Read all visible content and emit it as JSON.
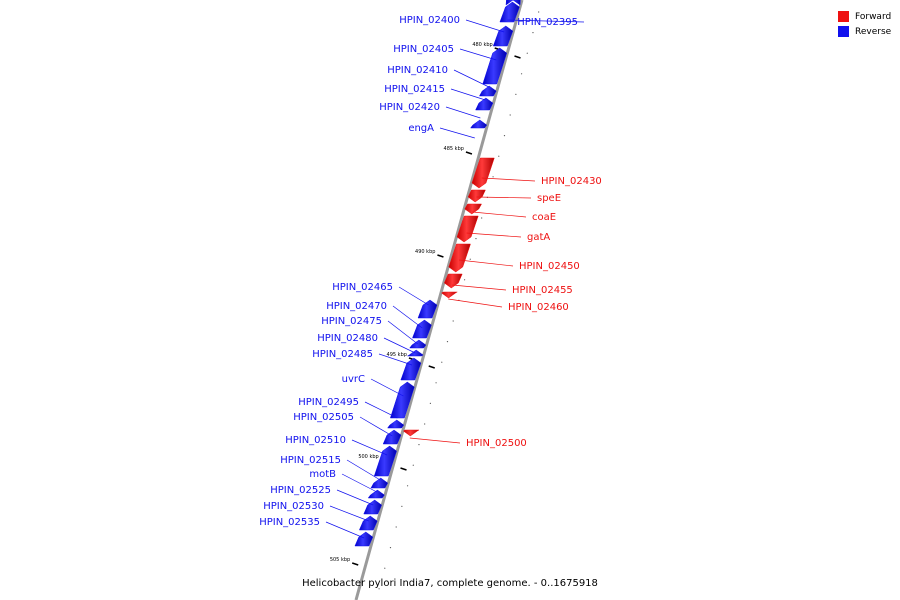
{
  "colors": {
    "forward": "#ee1111",
    "reverse": "#1111ee",
    "backbone": "#999999"
  },
  "legend": {
    "forward_label": "Forward",
    "reverse_label": "Reverse"
  },
  "caption": "Helicobacter pylori India7, complete genome. - 0..1675918",
  "scale_labels": [
    "480 kbp",
    "485 kbp",
    "490 kbp",
    "495 kbp",
    "500 kbp",
    "505 kbp"
  ],
  "genes": [
    {
      "name": "HPIN_02395",
      "strand": "reverse"
    },
    {
      "name": "HPIN_02400",
      "strand": "reverse"
    },
    {
      "name": "HPIN_02405",
      "strand": "reverse"
    },
    {
      "name": "HPIN_02410",
      "strand": "reverse"
    },
    {
      "name": "HPIN_02415",
      "strand": "reverse"
    },
    {
      "name": "HPIN_02420",
      "strand": "reverse"
    },
    {
      "name": "engA",
      "strand": "reverse"
    },
    {
      "name": "HPIN_02430",
      "strand": "forward"
    },
    {
      "name": "speE",
      "strand": "forward"
    },
    {
      "name": "coaE",
      "strand": "forward"
    },
    {
      "name": "gatA",
      "strand": "forward"
    },
    {
      "name": "HPIN_02450",
      "strand": "forward"
    },
    {
      "name": "HPIN_02455",
      "strand": "forward"
    },
    {
      "name": "HPIN_02460",
      "strand": "forward"
    },
    {
      "name": "HPIN_02465",
      "strand": "reverse"
    },
    {
      "name": "HPIN_02470",
      "strand": "reverse"
    },
    {
      "name": "HPIN_02475",
      "strand": "reverse"
    },
    {
      "name": "HPIN_02480",
      "strand": "reverse"
    },
    {
      "name": "HPIN_02485",
      "strand": "reverse"
    },
    {
      "name": "uvrC",
      "strand": "reverse"
    },
    {
      "name": "HPIN_02495",
      "strand": "reverse"
    },
    {
      "name": "HPIN_02505",
      "strand": "reverse"
    },
    {
      "name": "HPIN_02500",
      "strand": "forward"
    },
    {
      "name": "HPIN_02510",
      "strand": "reverse"
    },
    {
      "name": "HPIN_02515",
      "strand": "reverse"
    },
    {
      "name": "motB",
      "strand": "reverse"
    },
    {
      "name": "HPIN_02525",
      "strand": "reverse"
    },
    {
      "name": "HPIN_02530",
      "strand": "reverse"
    },
    {
      "name": "HPIN_02535",
      "strand": "reverse"
    }
  ]
}
